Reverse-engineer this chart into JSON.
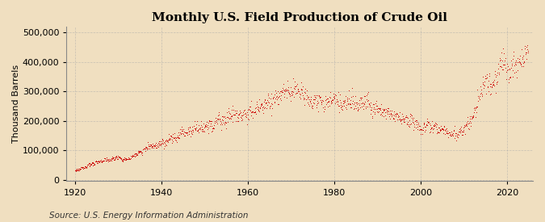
{
  "title": "Monthly U.S. Field Production of Crude Oil",
  "ylabel": "Thousand Barrels",
  "source": "Source: U.S. Energy Information Administration",
  "marker_color": "#cc0000",
  "background_color": "#f0dfc0",
  "plot_background": "#f0dfc0",
  "grid_color": "#aaaaaa",
  "title_fontsize": 11,
  "label_fontsize": 8,
  "source_fontsize": 7.5,
  "xlim": [
    1918,
    2026
  ],
  "ylim": [
    -5000,
    520000
  ],
  "yticks": [
    0,
    100000,
    200000,
    300000,
    400000,
    500000
  ],
  "xticks": [
    1920,
    1940,
    1960,
    1980,
    2000,
    2020
  ],
  "key_points": [
    [
      1920.0,
      30000
    ],
    [
      1921.0,
      32000
    ],
    [
      1922.0,
      40000
    ],
    [
      1923.0,
      48000
    ],
    [
      1924.0,
      52000
    ],
    [
      1925.0,
      55000
    ],
    [
      1926.0,
      60000
    ],
    [
      1927.0,
      65000
    ],
    [
      1928.0,
      68000
    ],
    [
      1929.0,
      72000
    ],
    [
      1930.0,
      73000
    ],
    [
      1931.0,
      68000
    ],
    [
      1932.0,
      63000
    ],
    [
      1933.0,
      75000
    ],
    [
      1934.0,
      82000
    ],
    [
      1935.0,
      90000
    ],
    [
      1936.0,
      100000
    ],
    [
      1937.0,
      110000
    ],
    [
      1938.0,
      105000
    ],
    [
      1939.0,
      115000
    ],
    [
      1940.0,
      120000
    ],
    [
      1941.0,
      130000
    ],
    [
      1942.0,
      138000
    ],
    [
      1943.0,
      145000
    ],
    [
      1944.0,
      152000
    ],
    [
      1945.0,
      158000
    ],
    [
      1946.0,
      160000
    ],
    [
      1947.0,
      168000
    ],
    [
      1948.0,
      175000
    ],
    [
      1949.0,
      170000
    ],
    [
      1950.0,
      178000
    ],
    [
      1951.0,
      192000
    ],
    [
      1952.0,
      195000
    ],
    [
      1953.0,
      200000
    ],
    [
      1954.0,
      198000
    ],
    [
      1955.0,
      208000
    ],
    [
      1956.0,
      218000
    ],
    [
      1957.0,
      225000
    ],
    [
      1958.0,
      218000
    ],
    [
      1959.0,
      225000
    ],
    [
      1960.0,
      230000
    ],
    [
      1961.0,
      235000
    ],
    [
      1962.0,
      242000
    ],
    [
      1963.0,
      248000
    ],
    [
      1964.0,
      255000
    ],
    [
      1965.0,
      260000
    ],
    [
      1966.0,
      268000
    ],
    [
      1967.0,
      278000
    ],
    [
      1968.0,
      285000
    ],
    [
      1969.0,
      292000
    ],
    [
      1970.0,
      305000
    ],
    [
      1971.0,
      300000
    ],
    [
      1972.0,
      295000
    ],
    [
      1973.0,
      280000
    ],
    [
      1974.0,
      268000
    ],
    [
      1975.0,
      258000
    ],
    [
      1976.0,
      255000
    ],
    [
      1977.0,
      258000
    ],
    [
      1978.0,
      260000
    ],
    [
      1979.0,
      265000
    ],
    [
      1980.0,
      262000
    ],
    [
      1981.0,
      258000
    ],
    [
      1982.0,
      258000
    ],
    [
      1983.0,
      260000
    ],
    [
      1984.0,
      265000
    ],
    [
      1985.0,
      268000
    ],
    [
      1986.0,
      265000
    ],
    [
      1987.0,
      255000
    ],
    [
      1988.0,
      248000
    ],
    [
      1989.0,
      240000
    ],
    [
      1990.0,
      232000
    ],
    [
      1991.0,
      228000
    ],
    [
      1992.0,
      222000
    ],
    [
      1993.0,
      215000
    ],
    [
      1994.0,
      210000
    ],
    [
      1995.0,
      208000
    ],
    [
      1996.0,
      205000
    ],
    [
      1997.0,
      202000
    ],
    [
      1998.0,
      198000
    ],
    [
      1999.0,
      190000
    ],
    [
      2000.0,
      185000
    ],
    [
      2001.0,
      180000
    ],
    [
      2002.0,
      178000
    ],
    [
      2003.0,
      175000
    ],
    [
      2004.0,
      170000
    ],
    [
      2005.0,
      162000
    ],
    [
      2006.0,
      158000
    ],
    [
      2007.0,
      155000
    ],
    [
      2008.0,
      153000
    ],
    [
      2009.0,
      158000
    ],
    [
      2010.0,
      168000
    ],
    [
      2011.0,
      185000
    ],
    [
      2012.0,
      215000
    ],
    [
      2013.0,
      250000
    ],
    [
      2014.0,
      295000
    ],
    [
      2015.0,
      335000
    ],
    [
      2016.0,
      315000
    ],
    [
      2017.0,
      330000
    ],
    [
      2018.0,
      375000
    ],
    [
      2019.0,
      405000
    ],
    [
      2020.0,
      370000
    ],
    [
      2021.0,
      360000
    ],
    [
      2022.0,
      385000
    ],
    [
      2023.0,
      410000
    ],
    [
      2024.0,
      420000
    ]
  ]
}
